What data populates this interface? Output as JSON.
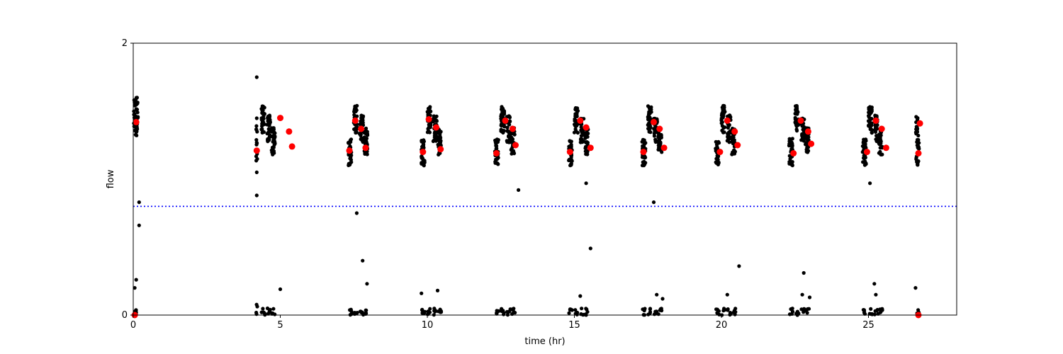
{
  "chart_data": {
    "type": "scatter",
    "title": "",
    "xlabel": "time (hr)",
    "ylabel": "flow",
    "xlim": [
      0,
      28
    ],
    "ylim": [
      0,
      2
    ],
    "xticks": [
      0,
      5,
      10,
      15,
      20,
      25
    ],
    "yticks": [
      0,
      2
    ],
    "grid": false,
    "threshold_line": {
      "y": 0.8,
      "color": "#0000ff",
      "style": "dotted"
    },
    "colors": {
      "points": "#000000",
      "highlight": "#ff0000",
      "threshold": "#0000ff"
    },
    "cluster_starts": [
      4.2,
      7.35,
      9.85,
      12.35,
      14.85,
      17.35,
      19.85,
      22.35,
      24.85
    ],
    "cluster_times": [
      0.0,
      0.2,
      0.4,
      0.55
    ],
    "cluster_levels": [
      1.19,
      1.43,
      1.36,
      1.27
    ],
    "highlight_points": [
      {
        "x": 0.1,
        "y": 1.42
      },
      {
        "x": 0.05,
        "y": 0.0
      },
      {
        "x": 4.2,
        "y": 1.21
      },
      {
        "x": 5.0,
        "y": 1.45
      },
      {
        "x": 5.3,
        "y": 1.35
      },
      {
        "x": 5.4,
        "y": 1.24
      },
      {
        "x": 7.35,
        "y": 1.21
      },
      {
        "x": 7.55,
        "y": 1.43
      },
      {
        "x": 7.75,
        "y": 1.37
      },
      {
        "x": 7.9,
        "y": 1.23
      },
      {
        "x": 9.85,
        "y": 1.2
      },
      {
        "x": 10.05,
        "y": 1.44
      },
      {
        "x": 10.3,
        "y": 1.38
      },
      {
        "x": 10.45,
        "y": 1.22
      },
      {
        "x": 12.35,
        "y": 1.19
      },
      {
        "x": 12.65,
        "y": 1.43
      },
      {
        "x": 12.9,
        "y": 1.37
      },
      {
        "x": 13.0,
        "y": 1.25
      },
      {
        "x": 14.85,
        "y": 1.2
      },
      {
        "x": 15.2,
        "y": 1.43
      },
      {
        "x": 15.4,
        "y": 1.38
      },
      {
        "x": 15.55,
        "y": 1.23
      },
      {
        "x": 17.35,
        "y": 1.2
      },
      {
        "x": 17.7,
        "y": 1.42
      },
      {
        "x": 17.9,
        "y": 1.37
      },
      {
        "x": 18.05,
        "y": 1.23
      },
      {
        "x": 19.95,
        "y": 1.2
      },
      {
        "x": 20.2,
        "y": 1.43
      },
      {
        "x": 20.45,
        "y": 1.35
      },
      {
        "x": 20.55,
        "y": 1.25
      },
      {
        "x": 22.45,
        "y": 1.19
      },
      {
        "x": 22.7,
        "y": 1.43
      },
      {
        "x": 22.95,
        "y": 1.35
      },
      {
        "x": 23.05,
        "y": 1.26
      },
      {
        "x": 24.95,
        "y": 1.2
      },
      {
        "x": 25.25,
        "y": 1.43
      },
      {
        "x": 25.45,
        "y": 1.37
      },
      {
        "x": 25.6,
        "y": 1.23
      },
      {
        "x": 26.7,
        "y": 1.19
      },
      {
        "x": 26.75,
        "y": 1.41
      },
      {
        "x": 26.7,
        "y": 0.0
      }
    ],
    "outliers": [
      {
        "x": 4.2,
        "y": 1.75
      },
      {
        "x": 4.2,
        "y": 1.05
      },
      {
        "x": 4.2,
        "y": 0.88
      },
      {
        "x": 0.2,
        "y": 0.83
      },
      {
        "x": 0.2,
        "y": 0.66
      },
      {
        "x": 0.1,
        "y": 0.26
      },
      {
        "x": 0.05,
        "y": 0.2
      },
      {
        "x": 7.6,
        "y": 0.75
      },
      {
        "x": 7.8,
        "y": 0.4
      },
      {
        "x": 7.95,
        "y": 0.23
      },
      {
        "x": 13.1,
        "y": 0.92
      },
      {
        "x": 15.55,
        "y": 0.49
      },
      {
        "x": 15.4,
        "y": 0.97
      },
      {
        "x": 17.7,
        "y": 0.83
      },
      {
        "x": 20.6,
        "y": 0.36
      },
      {
        "x": 22.8,
        "y": 0.31
      },
      {
        "x": 25.05,
        "y": 0.97
      },
      {
        "x": 25.2,
        "y": 0.23
      },
      {
        "x": 25.25,
        "y": 0.15
      },
      {
        "x": 9.8,
        "y": 0.16
      },
      {
        "x": 10.35,
        "y": 0.18
      },
      {
        "x": 26.6,
        "y": 0.2
      },
      {
        "x": 20.2,
        "y": 0.15
      },
      {
        "x": 22.75,
        "y": 0.15
      },
      {
        "x": 23.0,
        "y": 0.13
      },
      {
        "x": 17.8,
        "y": 0.15
      },
      {
        "x": 18.0,
        "y": 0.12
      },
      {
        "x": 15.2,
        "y": 0.14
      },
      {
        "x": 5.0,
        "y": 0.19
      }
    ]
  }
}
